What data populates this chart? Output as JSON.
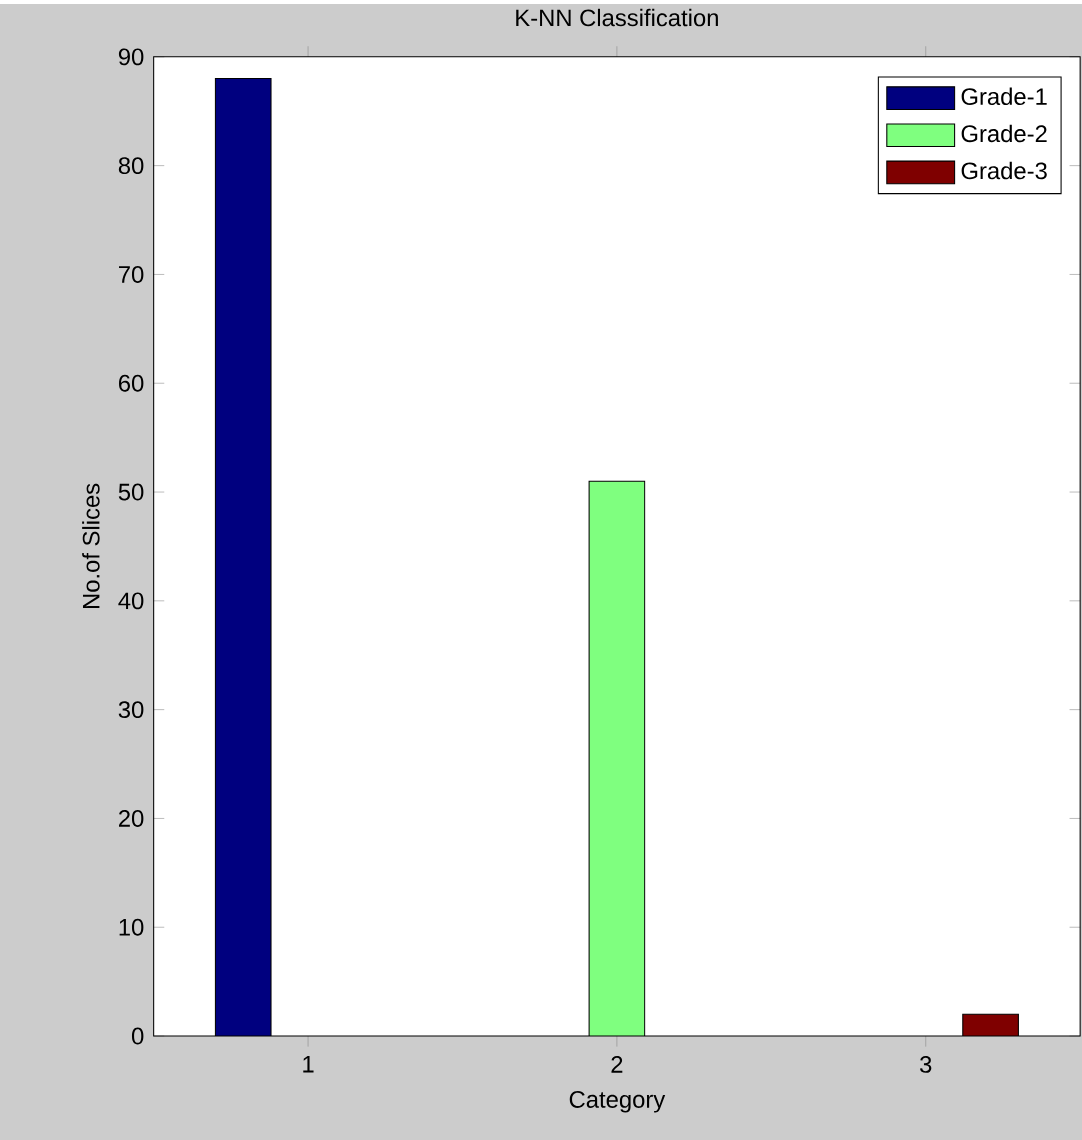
{
  "chart_data": {
    "type": "bar",
    "title": "K-NN Classification",
    "xlabel": "Category",
    "ylabel": "No.of Slices",
    "categories": [
      "1",
      "2",
      "3"
    ],
    "series": [
      {
        "name": "Grade-1",
        "color": "#00007f",
        "values": [
          88,
          null,
          null
        ]
      },
      {
        "name": "Grade-2",
        "color": "#7fff7f",
        "values": [
          null,
          51,
          null
        ]
      },
      {
        "name": "Grade-3",
        "color": "#7f0000",
        "values": [
          null,
          null,
          2
        ]
      }
    ],
    "ylim": [
      0,
      90
    ],
    "yticks": [
      0,
      10,
      20,
      30,
      40,
      50,
      60,
      70,
      80,
      90
    ],
    "legend": "top right",
    "grid": false
  }
}
